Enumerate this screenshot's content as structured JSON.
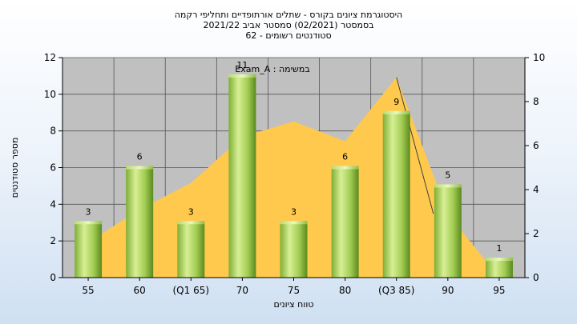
{
  "chart_data": {
    "type": "bar",
    "title_lines": [
      "היסטוגרמת ציונים בקורס - שתלים אורתופדיים ותחליפי רקמה",
      "בסמסטר  (02/2021)  סמסטר אביב 2021/22",
      "סטודנטים רשומים - 62"
    ],
    "categories": [
      "55",
      "60",
      "(Q1 65)",
      "70",
      "75",
      "80",
      "(Q3 85)",
      "90",
      "95"
    ],
    "values": [
      3,
      6,
      3,
      11,
      3,
      6,
      9,
      5,
      1
    ],
    "xlabel": "טווח ציונים",
    "ylabel": "מספר סטודנטים",
    "ylim": [
      0,
      12
    ],
    "y_ticks": [
      0,
      2,
      4,
      6,
      8,
      10,
      12
    ],
    "y2lim": [
      0,
      10
    ],
    "y2_ticks": [
      0,
      2,
      4,
      6,
      8,
      10
    ],
    "legend": "Exam_A : במשימה",
    "area_values": [
      1.6,
      3.1,
      4.3,
      6.4,
      7.1,
      6.2,
      9.1,
      2.9,
      0
    ],
    "grid": true,
    "colors": {
      "bar_light": "#d4ec8a",
      "bar_mid": "#9cc84a",
      "bar_dark": "#5d8a1f",
      "area": "#ffc94d",
      "plot_bg": "#c0c0c0",
      "line": "#404040"
    }
  }
}
